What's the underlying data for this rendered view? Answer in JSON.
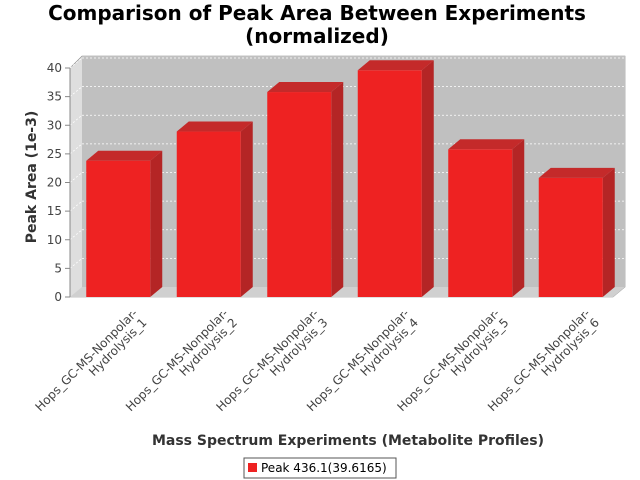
{
  "chart_data": {
    "type": "bar",
    "title_lines": [
      "Comparison of Peak Area Between Experiments",
      "(normalized)"
    ],
    "xlabel": "Mass Spectrum Experiments (Metabolite Profiles)",
    "ylabel": "Peak Area (1e-3)",
    "ylim": [
      0,
      40
    ],
    "yticks": [
      0,
      5,
      10,
      15,
      20,
      25,
      30,
      35,
      40
    ],
    "categories": [
      [
        "Hops_GC-MS-Nonpolar-",
        "Hydrolysis_1"
      ],
      [
        "Hops_GC-MS-Nonpolar-",
        "Hydrolysis_2"
      ],
      [
        "Hops_GC-MS-Nonpolar-",
        "Hydrolysis_3"
      ],
      [
        "Hops_GC-MS-Nonpolar-",
        "Hydrolysis_4"
      ],
      [
        "Hops_GC-MS-Nonpolar-",
        "Hydrolysis_5"
      ],
      [
        "Hops_GC-MS-Nonpolar-",
        "Hydrolysis_6"
      ]
    ],
    "series": [
      {
        "name": "Peak 436.1(39.6165)",
        "color": "#ee2222",
        "values": [
          23.8,
          28.9,
          35.8,
          39.6,
          25.8,
          20.8
        ]
      }
    ],
    "grid": true,
    "legend_position": "bottom"
  }
}
